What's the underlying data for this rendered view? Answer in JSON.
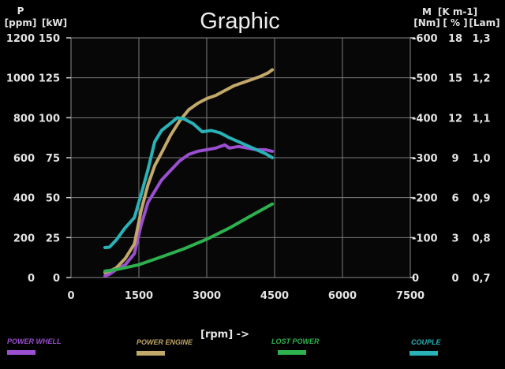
{
  "chart_data": {
    "type": "line",
    "title": "Graphic",
    "xlabel": "[rpm] ->",
    "xlim": [
      0,
      7500
    ],
    "xticks": [
      "0",
      "1500",
      "3000",
      "4500",
      "6000",
      "7500"
    ],
    "grid": true,
    "axes": {
      "left": [
        {
          "unit": "[ppm]",
          "ticks": [
            "1200",
            "1000",
            "800",
            "600",
            "400",
            "200",
            "0"
          ]
        },
        {
          "name": "P",
          "unit": "[kW]",
          "ticks": [
            "150",
            "125",
            "100",
            "75",
            "50",
            "25",
            "0"
          ],
          "ylim": [
            0,
            150
          ]
        }
      ],
      "right": [
        {
          "name": "M",
          "unit": "[Nm]",
          "ticks": [
            "-600",
            "-500",
            "-400",
            "-300",
            "-200",
            "-100",
            "0"
          ],
          "ylim": [
            0,
            600
          ]
        },
        {
          "name": "[K m-1]",
          "unit": "[ % ]",
          "ticks": [
            "18",
            "15",
            "12",
            "9",
            "6",
            "3",
            "0"
          ]
        },
        {
          "unit": "[Lam]",
          "ticks": [
            "1,3",
            "1,2",
            "1,1",
            "1,0",
            "0,9",
            "0,8",
            "0,7"
          ]
        }
      ]
    },
    "series": [
      {
        "name": "POWER WHELL",
        "color": "#9a4fd0",
        "axis": "kW",
        "x": [
          750,
          850,
          1000,
          1200,
          1400,
          1550,
          1700,
          1850,
          2000,
          2200,
          2400,
          2600,
          2800,
          3000,
          3200,
          3400,
          3500,
          3700,
          3900,
          4100,
          4300,
          4450
        ],
        "y": [
          1,
          2,
          5,
          8,
          15,
          33,
          47,
          54,
          61,
          67,
          73,
          77,
          79,
          80,
          81,
          83,
          81,
          82,
          81,
          80,
          80,
          79
        ]
      },
      {
        "name": "POWER ENGINE",
        "color": "#c2a86a",
        "axis": "kW",
        "x": [
          750,
          850,
          1000,
          1200,
          1400,
          1550,
          1700,
          1850,
          2000,
          2200,
          2400,
          2600,
          2800,
          3000,
          3200,
          3400,
          3600,
          3800,
          4000,
          4200,
          4350,
          4450
        ],
        "y": [
          3,
          4,
          6,
          12,
          21,
          42,
          58,
          70,
          78,
          89,
          98,
          105,
          109,
          112,
          114,
          117,
          120,
          122,
          124,
          126,
          128,
          130
        ]
      },
      {
        "name": "LOST POWER",
        "color": "#2eb04e",
        "axis": "kW",
        "x": [
          750,
          1000,
          1500,
          2000,
          2500,
          3000,
          3500,
          4000,
          4450
        ],
        "y": [
          4,
          5,
          8,
          13,
          18,
          24,
          31,
          39,
          46
        ]
      },
      {
        "name": "COUPLE",
        "color": "#29b3b8",
        "axis": "Nm",
        "x": [
          750,
          850,
          1000,
          1200,
          1400,
          1550,
          1700,
          1850,
          2000,
          2200,
          2350,
          2500,
          2700,
          2900,
          3100,
          3300,
          3500,
          3700,
          3900,
          4100,
          4300,
          4450
        ],
        "y": [
          75,
          76,
          94,
          125,
          150,
          208,
          270,
          340,
          368,
          386,
          400,
          397,
          385,
          365,
          368,
          362,
          350,
          340,
          330,
          320,
          310,
          300
        ]
      }
    ]
  }
}
